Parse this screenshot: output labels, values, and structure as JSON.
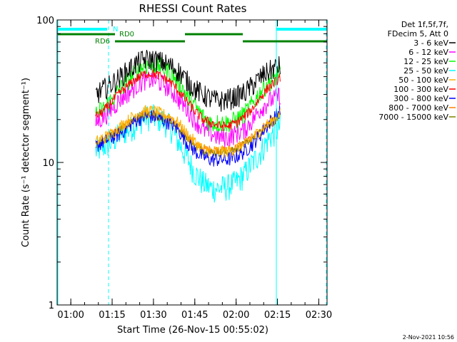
{
  "chart_data": {
    "type": "line",
    "title": "RHESSI Count Rates",
    "xlabel": "Start Time (26-Nov-15 00:55:02)",
    "ylabel": "Count Rate (s⁻¹ detector segment⁻¹)",
    "yscale": "log",
    "ylim": [
      1,
      100
    ],
    "yticks": [
      "1",
      "10",
      "100"
    ],
    "xlim": [
      "00:55:02",
      "02:33:00"
    ],
    "xticks": [
      "01:00",
      "01:15",
      "01:30",
      "01:45",
      "02:00",
      "02:15",
      "02:30"
    ],
    "legend_header": [
      "Det 1f,5f,7f,",
      "FDecim 5, Att 0"
    ],
    "legend_position": "right",
    "x_times": [
      "01:09",
      "01:12",
      "01:15",
      "01:18",
      "01:21",
      "01:24",
      "01:27",
      "01:30",
      "01:33",
      "01:36",
      "01:39",
      "01:42",
      "01:45",
      "01:48",
      "01:51",
      "01:54",
      "01:57",
      "02:00",
      "02:03",
      "02:06",
      "02:09",
      "02:12",
      "02:15",
      "02:16"
    ],
    "series": [
      {
        "name": "3 - 6 keV",
        "color": "#000000",
        "values": [
          30,
          33,
          36,
          40,
          45,
          50,
          53,
          53,
          51,
          48,
          44,
          38,
          33,
          30,
          28,
          27,
          28,
          29,
          31,
          35,
          40,
          44,
          47,
          48
        ]
      },
      {
        "name": "6 - 12 keV",
        "color": "#ff00ff",
        "values": [
          19,
          21,
          24,
          28,
          31,
          35,
          38,
          38,
          36,
          33,
          28,
          24,
          20,
          17,
          16,
          15,
          15,
          16,
          17,
          20,
          24,
          27,
          29,
          30
        ]
      },
      {
        "name": "12 - 25 keV",
        "color": "#00ff00",
        "values": [
          22,
          24,
          28,
          33,
          38,
          44,
          48,
          49,
          47,
          43,
          37,
          30,
          25,
          21,
          19,
          19,
          19,
          20,
          22,
          26,
          32,
          37,
          41,
          42
        ]
      },
      {
        "name": "25 - 50 keV",
        "color": "#00ffff",
        "values": [
          12,
          13,
          14,
          16,
          17,
          19,
          21,
          21,
          20,
          18,
          14,
          11,
          8.5,
          7.2,
          6.6,
          6.6,
          6.8,
          7.3,
          8.3,
          10,
          12,
          15,
          17,
          18
        ]
      },
      {
        "name": "50 - 100 keV",
        "color": "#ffb000",
        "values": [
          14,
          15,
          16,
          18,
          20,
          22,
          23,
          23,
          22,
          21,
          19,
          16,
          14,
          12.5,
          12,
          12,
          12,
          12.5,
          13.5,
          15,
          17,
          19,
          21,
          22
        ]
      },
      {
        "name": "100 - 300 keV",
        "color": "#ff0000",
        "values": [
          21,
          23,
          27,
          31,
          35,
          39,
          42,
          42,
          40,
          37,
          32,
          27,
          23,
          20,
          19,
          18,
          18,
          19,
          21,
          24,
          29,
          34,
          38,
          40
        ]
      },
      {
        "name": "300 - 800 keV",
        "color": "#0000ff",
        "values": [
          13,
          14,
          15,
          16,
          18,
          20,
          21,
          21,
          20,
          19,
          17,
          14,
          12,
          11,
          10.5,
          10.5,
          10.5,
          11,
          12,
          13.5,
          16,
          19,
          22,
          23
        ]
      },
      {
        "name": "800 - 7000 keV",
        "color": "#ff8000",
        "values": [
          13.5,
          14.5,
          16,
          17,
          19,
          21,
          22,
          22,
          21,
          20,
          18,
          15.5,
          13.5,
          12.5,
          12.3,
          12.3,
          12.3,
          12.8,
          13.8,
          15,
          17,
          19,
          21,
          22
        ]
      },
      {
        "name": "7000 - 15000 keV",
        "color": "#808000",
        "values": [
          13,
          14,
          15.5,
          17,
          18.5,
          20.5,
          21.5,
          21.5,
          20.5,
          19.5,
          17.5,
          15,
          13,
          12,
          11.8,
          11.8,
          11.8,
          12.3,
          13.3,
          14.5,
          16.5,
          18.5,
          20.5,
          21.5
        ]
      }
    ],
    "annotations": {
      "N_label": "N",
      "RD0_label": "RD0",
      "RD6_label": "RD6"
    },
    "timestamp": "2-Nov-2021 10:56"
  }
}
